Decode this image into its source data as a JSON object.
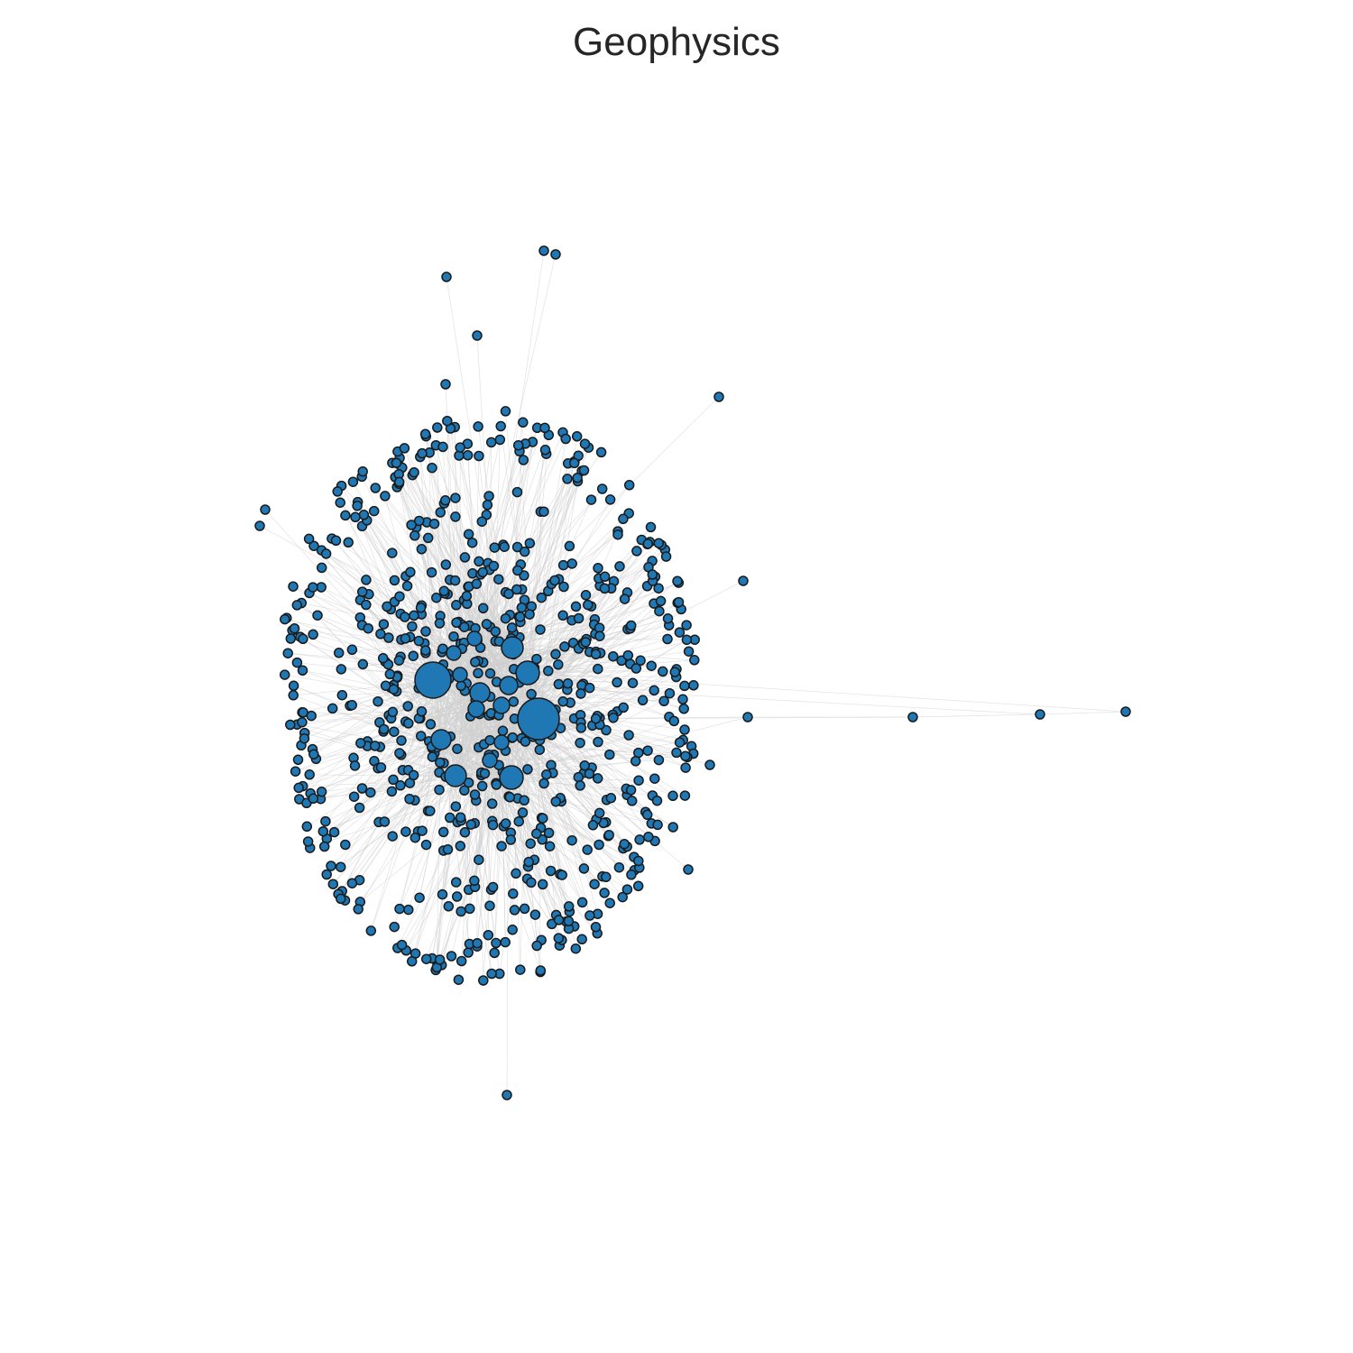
{
  "title": "Geophysics",
  "style": {
    "node_fill": "#1f77b4",
    "node_stroke": "#1a1a1a",
    "edge_color": "#d0d0d0"
  }
}
